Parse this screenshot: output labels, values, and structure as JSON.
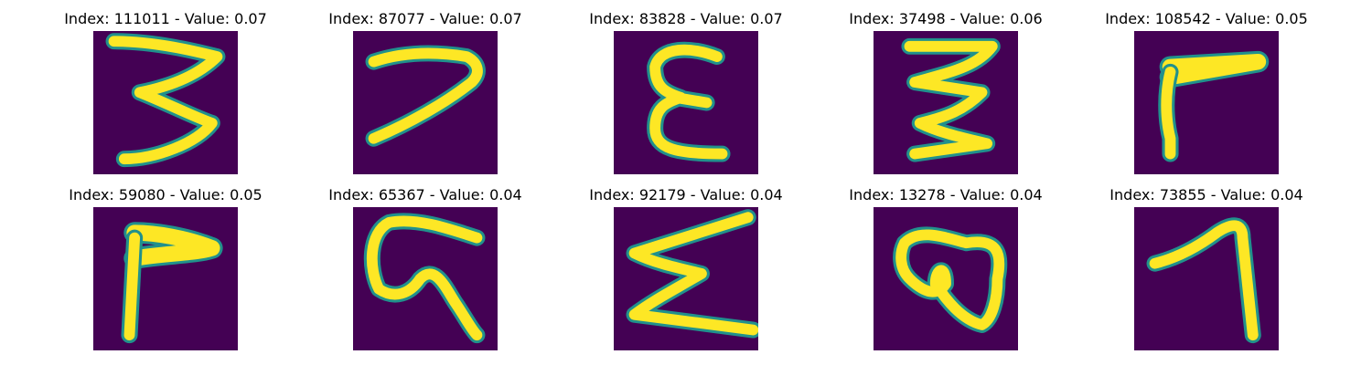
{
  "figure": {
    "colors": {
      "background": "#440154",
      "edge": "#21918c",
      "mid": "#5ec962",
      "stroke": "#fde725"
    },
    "panels": [
      {
        "index_label": "Index: 111011 - Value: 0.07",
        "glyph": "3"
      },
      {
        "index_label": "Index: 87077 - Value: 0.07",
        "glyph": "7"
      },
      {
        "index_label": "Index: 83828 - Value: 0.07",
        "glyph": "E"
      },
      {
        "index_label": "Index: 37498 - Value: 0.06",
        "glyph": "3"
      },
      {
        "index_label": "Index: 108542 - Value: 0.05",
        "glyph": "F"
      },
      {
        "index_label": "Index: 59080 - Value: 0.05",
        "glyph": "L"
      },
      {
        "index_label": "Index: 65367 - Value: 0.04",
        "glyph": "G"
      },
      {
        "index_label": "Index: 92179 - Value: 0.04",
        "glyph": "E"
      },
      {
        "index_label": "Index: 13278 - Value: 0.04",
        "glyph": "@"
      },
      {
        "index_label": "Index: 73855 - Value: 0.04",
        "glyph": "1"
      }
    ]
  }
}
